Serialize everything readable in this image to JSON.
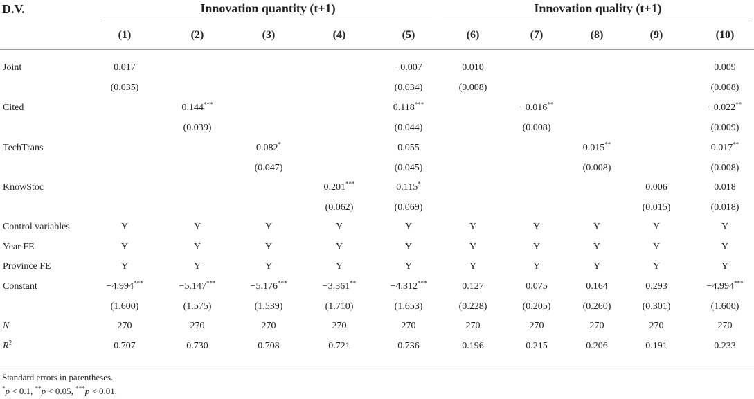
{
  "table": {
    "dv_label": "D.V.",
    "groups": [
      {
        "title": "Innovation quantity (t+1)"
      },
      {
        "title": "Innovation quality (t+1)"
      }
    ],
    "columns": [
      "(1)",
      "(2)",
      "(3)",
      "(4)",
      "(5)",
      "(6)",
      "(7)",
      "(8)",
      "(9)",
      "(10)"
    ],
    "rows": [
      {
        "label": "Joint",
        "cells": [
          "0.017",
          "",
          "",
          "",
          "−0.007",
          "0.010",
          "",
          "",
          "",
          "0.009"
        ]
      },
      {
        "label": "",
        "cells": [
          "(0.035)",
          "",
          "",
          "",
          "(0.034)",
          "(0.008)",
          "",
          "",
          "",
          "(0.008)"
        ]
      },
      {
        "label": "Cited",
        "cells": [
          "",
          "0.144***",
          "",
          "",
          "0.118***",
          "",
          "−0.016**",
          "",
          "",
          "−0.022**"
        ]
      },
      {
        "label": "",
        "cells": [
          "",
          "(0.039)",
          "",
          "",
          "(0.044)",
          "",
          "(0.008)",
          "",
          "",
          "(0.009)"
        ]
      },
      {
        "label": "TechTrans",
        "cells": [
          "",
          "",
          "0.082*",
          "",
          "0.055",
          "",
          "",
          "0.015**",
          "",
          "0.017**"
        ]
      },
      {
        "label": "",
        "cells": [
          "",
          "",
          "(0.047)",
          "",
          "(0.045)",
          "",
          "",
          "(0.008)",
          "",
          "(0.008)"
        ]
      },
      {
        "label": "KnowStoc",
        "cells": [
          "",
          "",
          "",
          "0.201***",
          "0.115*",
          "",
          "",
          "",
          "0.006",
          "0.018"
        ]
      },
      {
        "label": "",
        "cells": [
          "",
          "",
          "",
          "(0.062)",
          "(0.069)",
          "",
          "",
          "",
          "(0.015)",
          "(0.018)"
        ]
      },
      {
        "label": "Control variables",
        "cells": [
          "Y",
          "Y",
          "Y",
          "Y",
          "Y",
          "Y",
          "Y",
          "Y",
          "Y",
          "Y"
        ]
      },
      {
        "label": "Year FE",
        "cells": [
          "Y",
          "Y",
          "Y",
          "Y",
          "Y",
          "Y",
          "Y",
          "Y",
          "Y",
          "Y"
        ]
      },
      {
        "label": "Province FE",
        "cells": [
          "Y",
          "Y",
          "Y",
          "Y",
          "Y",
          "Y",
          "Y",
          "Y",
          "Y",
          "Y"
        ]
      },
      {
        "label": "Constant",
        "cells": [
          "−4.994***",
          "−5.147***",
          "−5.176***",
          "−3.361**",
          "−4.312***",
          "0.127",
          "0.075",
          "0.164",
          "0.293",
          "−4.994***"
        ]
      },
      {
        "label": "",
        "cells": [
          "(1.600)",
          "(1.575)",
          "(1.539)",
          "(1.710)",
          "(1.653)",
          "(0.228)",
          "(0.205)",
          "(0.260)",
          "(0.301)",
          "(1.600)"
        ]
      },
      {
        "label": "N",
        "cells": [
          "270",
          "270",
          "270",
          "270",
          "270",
          "270",
          "270",
          "270",
          "270",
          "270"
        ]
      },
      {
        "label": "R2",
        "cells": [
          "0.707",
          "0.730",
          "0.708",
          "0.721",
          "0.736",
          "0.196",
          "0.215",
          "0.206",
          "0.191",
          "0.233"
        ]
      }
    ],
    "notes": {
      "line1": "Standard errors in parentheses.",
      "line2": "*p < 0.1, **p < 0.05, ***p < 0.01."
    }
  }
}
